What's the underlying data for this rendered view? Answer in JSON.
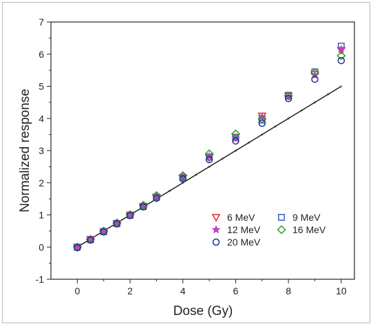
{
  "chart_data": {
    "type": "scatter",
    "xlabel": "Dose  (Gy)",
    "ylabel": "Normalized response",
    "xlim": [
      -1,
      10.5
    ],
    "ylim": [
      -1,
      7
    ],
    "xticks": [
      0,
      2,
      4,
      6,
      8,
      10
    ],
    "yticks": [
      -1,
      0,
      1,
      2,
      3,
      4,
      5,
      6,
      7
    ],
    "legend_position": "lower-right",
    "reference_line": {
      "x": [
        0,
        10
      ],
      "y": [
        0,
        5
      ]
    },
    "series": [
      {
        "name": "6 MeV",
        "marker": "triangle-down",
        "color": "#e8262a",
        "x": [
          0,
          0.5,
          1,
          1.5,
          2,
          2.5,
          3,
          4,
          5,
          6,
          7,
          8,
          9,
          10
        ],
        "y": [
          0,
          0.24,
          0.49,
          0.74,
          1.0,
          1.27,
          1.56,
          2.15,
          2.78,
          3.42,
          4.08,
          4.7,
          5.38,
          6.12
        ]
      },
      {
        "name": "9 MeV",
        "marker": "square",
        "color": "#3a5fb8",
        "x": [
          0,
          0.5,
          1,
          1.5,
          2,
          2.5,
          3,
          4,
          5,
          6,
          7,
          8,
          9,
          10
        ],
        "y": [
          0,
          0.23,
          0.48,
          0.73,
          0.99,
          1.26,
          1.55,
          2.17,
          2.8,
          3.4,
          3.95,
          4.72,
          5.45,
          6.25
        ]
      },
      {
        "name": "12 MeV",
        "marker": "star",
        "color": "#c43ec4",
        "x": [
          0,
          0.5,
          1,
          1.5,
          2,
          2.5,
          3,
          4,
          5,
          6,
          7,
          8,
          9,
          10
        ],
        "y": [
          0,
          0.23,
          0.49,
          0.74,
          1.0,
          1.28,
          1.57,
          2.18,
          2.82,
          3.38,
          4.05,
          4.68,
          5.35,
          6.15
        ]
      },
      {
        "name": "16 MeV",
        "marker": "diamond",
        "color": "#2a9a2a",
        "x": [
          0,
          0.5,
          1,
          1.5,
          2,
          2.5,
          3,
          4,
          5,
          6,
          7,
          8,
          9,
          10
        ],
        "y": [
          0,
          0.24,
          0.5,
          0.75,
          1.01,
          1.3,
          1.6,
          2.22,
          2.9,
          3.52,
          3.98,
          4.7,
          5.42,
          5.95
        ]
      },
      {
        "name": "20 MeV",
        "marker": "circle",
        "color": "#1e2f8c",
        "x": [
          0,
          0.5,
          1,
          1.5,
          2,
          2.5,
          3,
          4,
          5,
          6,
          7,
          8,
          9,
          10
        ],
        "y": [
          -0.02,
          0.22,
          0.47,
          0.72,
          0.98,
          1.25,
          1.52,
          2.12,
          2.72,
          3.3,
          3.85,
          4.62,
          5.22,
          5.8
        ]
      }
    ]
  }
}
